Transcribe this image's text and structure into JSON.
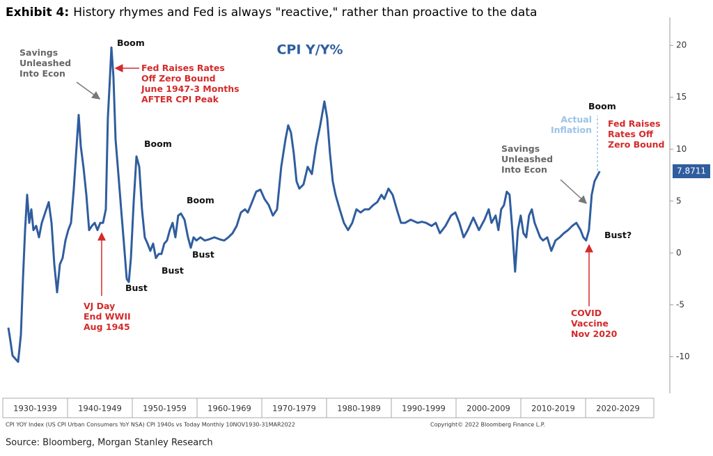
{
  "header": {
    "exhibit": "Exhibit 4:",
    "title": "History rhymes and Fed is always \"reactive,\" rather than proactive to the data"
  },
  "chart_data": {
    "type": "line",
    "title": "CPI Y/Y%",
    "color": "#2f5d9e",
    "x": [
      1930.86,
      1931.18,
      1931.51,
      1931.94,
      1932.37,
      1932.8,
      1933.12,
      1933.44,
      1933.76,
      1934.09,
      1934.41,
      1934.73,
      1935.16,
      1935.59,
      1936.02,
      1936.56,
      1937.1,
      1937.53,
      1937.96,
      1938.39,
      1938.82,
      1939.24,
      1939.68,
      1940.11,
      1940.54,
      1940.97,
      1941.4,
      1941.72,
      1942.04,
      1942.47,
      1942.9,
      1943.33,
      1943.76,
      1944.19,
      1944.62,
      1945.05,
      1945.48,
      1945.91,
      1946.23,
      1946.56,
      1946.77,
      1947.09,
      1947.42,
      1947.85,
      1948.28,
      1948.71,
      1949.14,
      1949.46,
      1949.78,
      1950.21,
      1950.64,
      1951.07,
      1951.5,
      1951.93,
      1952.36,
      1952.79,
      1953.22,
      1953.65,
      1954.08,
      1954.51,
      1954.94,
      1955.37,
      1955.8,
      1956.23,
      1956.66,
      1957.09,
      1957.52,
      1958.06,
      1958.6,
      1959.03,
      1959.46,
      1959.89,
      1960.53,
      1961.18,
      1961.82,
      1962.68,
      1963.54,
      1964.19,
      1964.83,
      1965.48,
      1966.12,
      1966.77,
      1967.41,
      1967.84,
      1968.49,
      1969.13,
      1969.78,
      1970.42,
      1971.07,
      1971.71,
      1972.36,
      1973.0,
      1973.65,
      1974.08,
      1974.51,
      1974.94,
      1975.37,
      1975.8,
      1976.44,
      1977.09,
      1977.73,
      1978.38,
      1979.02,
      1979.67,
      1980.1,
      1980.53,
      1980.96,
      1981.39,
      1982.03,
      1982.68,
      1983.32,
      1983.97,
      1984.61,
      1985.26,
      1985.9,
      1986.55,
      1987.19,
      1987.84,
      1988.48,
      1988.91,
      1989.56,
      1990.2,
      1990.85,
      1991.49,
      1992.14,
      1993.0,
      1994.07,
      1994.72,
      1995.36,
      1996.22,
      1996.87,
      1997.51,
      1998.37,
      1999.23,
      1999.88,
      2000.52,
      2001.17,
      2001.81,
      2002.67,
      2003.53,
      2004.39,
      2005.04,
      2005.47,
      2006.11,
      2006.54,
      2006.97,
      2007.4,
      2007.83,
      2008.26,
      2008.69,
      2009.12,
      2009.55,
      2009.98,
      2010.41,
      2010.84,
      2011.27,
      2011.7,
      2012.13,
      2012.56,
      2012.99,
      2013.42,
      2014.07,
      2014.71,
      2015.36,
      2016.0,
      2016.65,
      2017.29,
      2017.94,
      2018.58,
      2019.23,
      2019.66,
      2020.09,
      2020.52,
      2020.95,
      2021.38,
      2022.17
    ],
    "values": [
      -7.2,
      -8.5,
      -9.9,
      -10.2,
      -10.5,
      -7.9,
      -2.5,
      2.2,
      5.6,
      2.9,
      4.2,
      2.2,
      2.6,
      1.5,
      2.9,
      3.9,
      4.9,
      2.9,
      -1.1,
      -3.8,
      -1.1,
      -0.5,
      1.2,
      2.2,
      2.9,
      6.2,
      10.3,
      13.3,
      10.3,
      8.2,
      5.6,
      2.2,
      2.6,
      2.9,
      2.2,
      2.9,
      2.9,
      4.2,
      13.0,
      17.0,
      19.8,
      17.0,
      10.9,
      7.6,
      4.2,
      0.9,
      -2.5,
      -2.8,
      -0.5,
      4.9,
      9.3,
      8.3,
      4.2,
      1.5,
      0.9,
      0.2,
      0.9,
      -0.5,
      -0.1,
      -0.1,
      0.9,
      1.2,
      2.2,
      2.9,
      1.5,
      3.6,
      3.8,
      3.2,
      1.5,
      0.5,
      1.5,
      1.2,
      1.5,
      1.2,
      1.3,
      1.5,
      1.3,
      1.2,
      1.5,
      1.9,
      2.6,
      3.9,
      4.2,
      3.9,
      4.9,
      5.9,
      6.1,
      5.2,
      4.6,
      3.6,
      4.2,
      8.3,
      10.9,
      12.3,
      11.6,
      9.6,
      6.9,
      6.2,
      6.6,
      8.3,
      7.6,
      10.3,
      12.3,
      14.6,
      13.0,
      9.6,
      6.9,
      5.6,
      4.2,
      2.9,
      2.2,
      2.9,
      4.2,
      3.9,
      4.2,
      4.2,
      4.6,
      4.9,
      5.6,
      5.2,
      6.2,
      5.6,
      4.2,
      2.9,
      2.9,
      3.2,
      2.9,
      3.0,
      2.9,
      2.6,
      2.9,
      1.9,
      2.6,
      3.6,
      3.9,
      2.9,
      1.5,
      2.2,
      3.4,
      2.2,
      3.2,
      4.2,
      2.9,
      3.6,
      2.2,
      4.2,
      4.6,
      5.9,
      5.6,
      2.2,
      -1.8,
      2.2,
      3.6,
      1.9,
      1.5,
      3.6,
      4.2,
      2.9,
      2.2,
      1.5,
      1.2,
      1.5,
      0.2,
      1.2,
      1.5,
      1.9,
      2.2,
      2.6,
      2.9,
      2.2,
      1.5,
      1.2,
      2.2,
      5.6,
      6.9,
      7.8711
    ],
    "xlim": [
      1930,
      2030
    ],
    "xticks": [
      {
        "value": 1930,
        "label": "1930-1939"
      },
      {
        "value": 1940,
        "label": "1940-1949"
      },
      {
        "value": 1950,
        "label": "1950-1959"
      },
      {
        "value": 1960,
        "label": "1960-1969"
      },
      {
        "value": 1970,
        "label": "1970-1979"
      },
      {
        "value": 1980,
        "label": "1980-1989"
      },
      {
        "value": 1990,
        "label": "1990-1999"
      },
      {
        "value": 2000,
        "label": "2000-2009"
      },
      {
        "value": 2010,
        "label": "2010-2019"
      },
      {
        "value": 2020,
        "label": "2020-2029"
      }
    ],
    "ylim": [
      -13.2,
      22.7
    ],
    "yticks": [
      -10,
      -5,
      0,
      5,
      10,
      15,
      20
    ],
    "annotations": [
      {
        "lines": [
          "Savings",
          "Unleashed",
          "Into Econ"
        ],
        "color": "#666666"
      },
      {
        "lines": [
          "Boom"
        ],
        "color": "#111111"
      },
      {
        "lines": [
          "Fed Raises Rates",
          "Off Zero Bound",
          "June 1947-3 Months",
          "AFTER CPI Peak"
        ],
        "color": "#d42a2a"
      },
      {
        "lines": [
          "Boom"
        ],
        "color": "#111111"
      },
      {
        "lines": [
          "Boom"
        ],
        "color": "#111111"
      },
      {
        "lines": [
          "Bust"
        ],
        "color": "#111111"
      },
      {
        "lines": [
          "Bust"
        ],
        "color": "#111111"
      },
      {
        "lines": [
          "Bust"
        ],
        "color": "#111111"
      },
      {
        "lines": [
          "VJ Day",
          "End WWII",
          "Aug 1945"
        ],
        "color": "#d42a2a"
      },
      {
        "lines": [
          "Boom"
        ],
        "color": "#111111"
      },
      {
        "lines": [
          "Actual",
          "Inflation"
        ],
        "color": "#9cc3e6"
      },
      {
        "lines": [
          "Fed Raises",
          "Rates Off",
          "Zero Bound"
        ],
        "color": "#d42a2a"
      },
      {
        "lines": [
          "Savings",
          "Unleashed",
          "Into Econ"
        ],
        "color": "#666666"
      },
      {
        "lines": [
          "Bust?"
        ],
        "color": "#111111"
      },
      {
        "lines": [
          "COVID",
          "Vaccine",
          "Nov 2020"
        ],
        "color": "#d42a2a"
      }
    ]
  },
  "footer": {
    "series_note": "CPI YOY Index (US CPI Urban Consumers YoY NSA) CPI 1940s vs Today  Monthly 10NOV1930-31MAR2022",
    "copyright": "Copyright© 2022 Bloomberg Finance L.P.",
    "source": "Source: Bloomberg, Morgan Stanley Research"
  }
}
